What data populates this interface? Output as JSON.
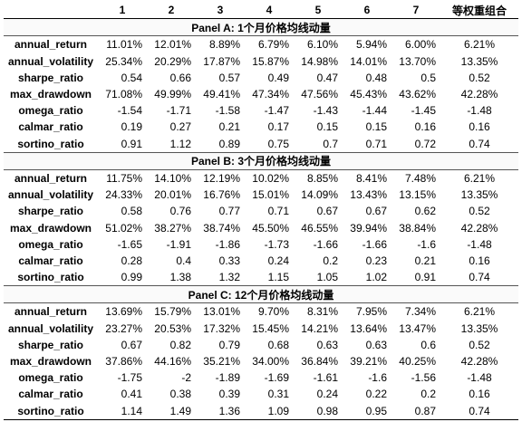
{
  "columns": [
    "",
    "1",
    "2",
    "3",
    "4",
    "5",
    "6",
    "7",
    "等权重组合"
  ],
  "panels": [
    {
      "title": "Panel A: 1个月价格均线动量",
      "rows": [
        {
          "metric": "annual_return",
          "values": [
            "11.01%",
            "12.01%",
            "8.89%",
            "6.79%",
            "6.10%",
            "5.94%",
            "6.00%",
            "6.21%"
          ]
        },
        {
          "metric": "annual_volatility",
          "values": [
            "25.34%",
            "20.29%",
            "17.87%",
            "15.87%",
            "14.98%",
            "14.01%",
            "13.70%",
            "13.35%"
          ]
        },
        {
          "metric": "sharpe_ratio",
          "values": [
            "0.54",
            "0.66",
            "0.57",
            "0.49",
            "0.47",
            "0.48",
            "0.5",
            "0.52"
          ]
        },
        {
          "metric": "max_drawdown",
          "values": [
            "71.08%",
            "49.99%",
            "49.41%",
            "47.34%",
            "47.56%",
            "45.43%",
            "43.62%",
            "42.28%"
          ]
        },
        {
          "metric": "omega_ratio",
          "values": [
            "-1.54",
            "-1.71",
            "-1.58",
            "-1.47",
            "-1.43",
            "-1.44",
            "-1.45",
            "-1.48"
          ]
        },
        {
          "metric": "calmar_ratio",
          "values": [
            "0.19",
            "0.27",
            "0.21",
            "0.17",
            "0.15",
            "0.15",
            "0.16",
            "0.16"
          ]
        },
        {
          "metric": "sortino_ratio",
          "values": [
            "0.91",
            "1.12",
            "0.89",
            "0.75",
            "0.7",
            "0.71",
            "0.72",
            "0.74"
          ]
        }
      ]
    },
    {
      "title": "Panel B: 3个月价格均线动量",
      "rows": [
        {
          "metric": "annual_return",
          "values": [
            "11.75%",
            "14.10%",
            "12.19%",
            "10.02%",
            "8.85%",
            "8.41%",
            "7.48%",
            "6.21%"
          ]
        },
        {
          "metric": "annual_volatility",
          "values": [
            "24.33%",
            "20.01%",
            "16.76%",
            "15.01%",
            "14.09%",
            "13.43%",
            "13.15%",
            "13.35%"
          ]
        },
        {
          "metric": "sharpe_ratio",
          "values": [
            "0.58",
            "0.76",
            "0.77",
            "0.71",
            "0.67",
            "0.67",
            "0.62",
            "0.52"
          ]
        },
        {
          "metric": "max_drawdown",
          "values": [
            "51.02%",
            "38.27%",
            "38.74%",
            "45.50%",
            "46.55%",
            "39.94%",
            "38.84%",
            "42.28%"
          ]
        },
        {
          "metric": "omega_ratio",
          "values": [
            "-1.65",
            "-1.91",
            "-1.86",
            "-1.73",
            "-1.66",
            "-1.66",
            "-1.6",
            "-1.48"
          ]
        },
        {
          "metric": "calmar_ratio",
          "values": [
            "0.28",
            "0.4",
            "0.33",
            "0.24",
            "0.2",
            "0.23",
            "0.21",
            "0.16"
          ]
        },
        {
          "metric": "sortino_ratio",
          "values": [
            "0.99",
            "1.38",
            "1.32",
            "1.15",
            "1.05",
            "1.02",
            "0.91",
            "0.74"
          ]
        }
      ]
    },
    {
      "title": "Panel C: 12个月价格均线动量",
      "rows": [
        {
          "metric": "annual_return",
          "values": [
            "13.69%",
            "15.79%",
            "13.01%",
            "9.70%",
            "8.31%",
            "7.95%",
            "7.34%",
            "6.21%"
          ]
        },
        {
          "metric": "annual_volatility",
          "values": [
            "23.27%",
            "20.53%",
            "17.32%",
            "15.45%",
            "14.21%",
            "13.64%",
            "13.47%",
            "13.35%"
          ]
        },
        {
          "metric": "sharpe_ratio",
          "values": [
            "0.67",
            "0.82",
            "0.79",
            "0.68",
            "0.63",
            "0.63",
            "0.6",
            "0.52"
          ]
        },
        {
          "metric": "max_drawdown",
          "values": [
            "37.86%",
            "44.16%",
            "35.21%",
            "34.00%",
            "36.84%",
            "39.21%",
            "40.25%",
            "42.28%"
          ]
        },
        {
          "metric": "omega_ratio",
          "values": [
            "-1.75",
            "-2",
            "-1.89",
            "-1.69",
            "-1.61",
            "-1.6",
            "-1.56",
            "-1.48"
          ]
        },
        {
          "metric": "calmar_ratio",
          "values": [
            "0.41",
            "0.38",
            "0.39",
            "0.31",
            "0.24",
            "0.22",
            "0.2",
            "0.16"
          ]
        },
        {
          "metric": "sortino_ratio",
          "values": [
            "1.14",
            "1.49",
            "1.36",
            "1.09",
            "0.98",
            "0.95",
            "0.87",
            "0.74"
          ]
        }
      ]
    }
  ]
}
